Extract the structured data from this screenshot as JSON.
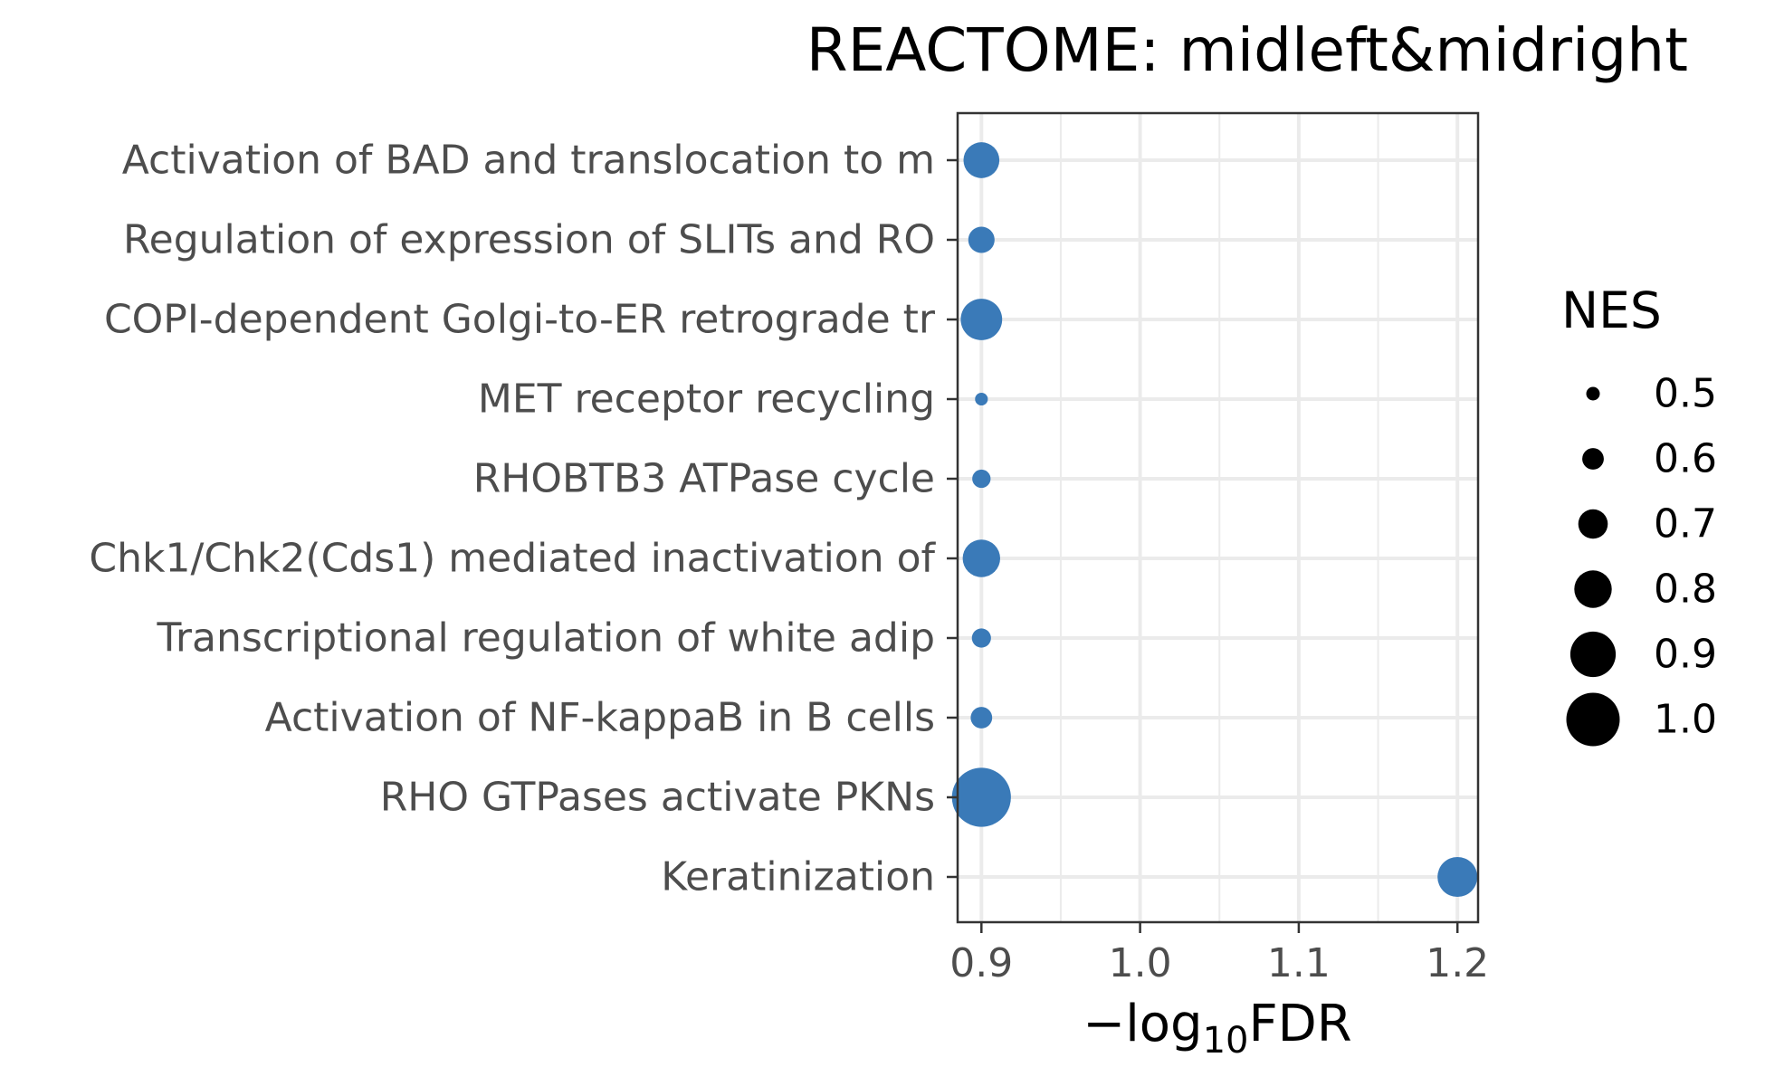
{
  "chart_data": {
    "type": "scatter",
    "title": "REACTOME: midleft&midright",
    "xlabel_prefix": "−log",
    "xlabel_subscript": "10",
    "xlabel_suffix": "FDR",
    "ylabel": "",
    "xlim": [
      0.885,
      1.213
    ],
    "xticks": [
      0.9,
      1.0,
      1.1,
      1.2
    ],
    "xtick_labels": [
      "0.9",
      "1.0",
      "1.1",
      "1.2"
    ],
    "grid": true,
    "point_color": "#3a7ab8",
    "categories": [
      "Activation of BAD and translocation to m",
      "Regulation of expression of SLITs and RO",
      "COPI-dependent Golgi-to-ER retrograde tr",
      "MET receptor recycling",
      "RHOBTB3 ATPase cycle",
      "Chk1/Chk2(Cds1) mediated inactivation of",
      "Transcriptional regulation of white adip",
      "Activation of NF-kappaB in B cells",
      "RHO GTPases activate PKNs",
      "Keratinization"
    ],
    "x": [
      0.9,
      0.9,
      0.9,
      0.9,
      0.9,
      0.9,
      0.9,
      0.9,
      0.9,
      1.2
    ],
    "nes": [
      0.78,
      0.66,
      0.85,
      0.49,
      0.56,
      0.8,
      0.57,
      0.6,
      1.07,
      0.83
    ],
    "legend": {
      "title": "NES",
      "placement": "right",
      "labels": [
        "0.5",
        "0.6",
        "0.7",
        "0.8",
        "0.9",
        "1.0"
      ],
      "values": [
        0.5,
        0.6,
        0.7,
        0.8,
        0.9,
        1.0
      ],
      "color": "#000000"
    }
  }
}
